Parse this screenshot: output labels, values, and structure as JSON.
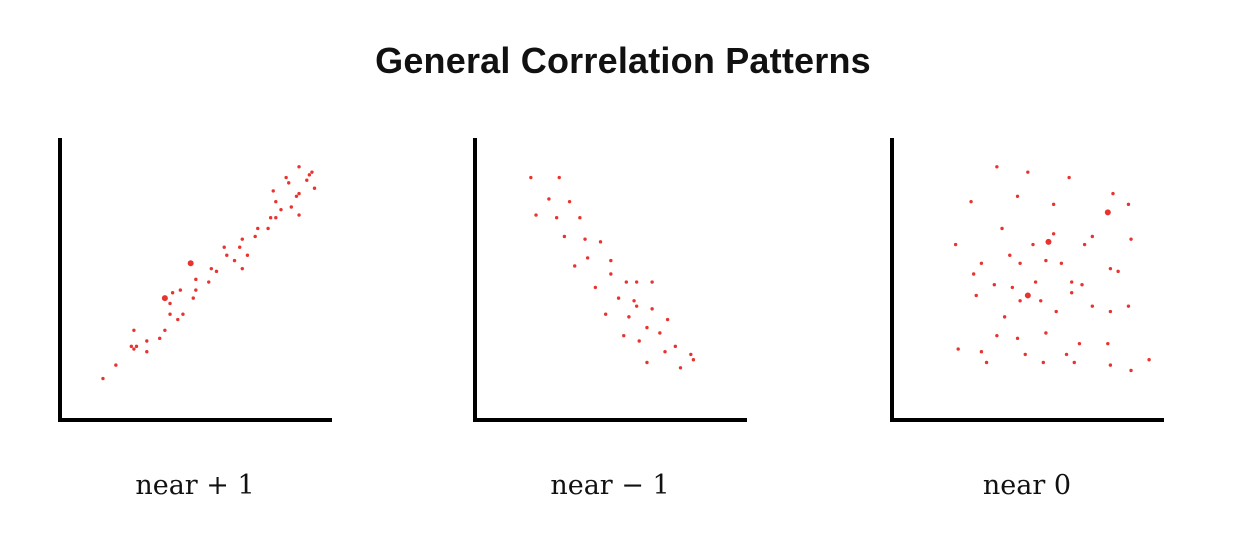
{
  "title": "General Correlation Patterns",
  "colors": {
    "axis": "#000000",
    "point": "#e8332f",
    "text": "#111111"
  },
  "chart_data": [
    {
      "type": "scatter",
      "caption": "near + 1",
      "xlim": [
        0,
        100
      ],
      "ylim": [
        0,
        100
      ],
      "points": [
        [
          12,
          11
        ],
        [
          17,
          16
        ],
        [
          24,
          22
        ],
        [
          23,
          23
        ],
        [
          25,
          23
        ],
        [
          29,
          21
        ],
        [
          29,
          25
        ],
        [
          24,
          29
        ],
        [
          34,
          26
        ],
        [
          36,
          29
        ],
        [
          41,
          33
        ],
        [
          38,
          35
        ],
        [
          43,
          35
        ],
        [
          38,
          39
        ],
        [
          39,
          43
        ],
        [
          47,
          41
        ],
        [
          42,
          44
        ],
        [
          48,
          44
        ],
        [
          53,
          47
        ],
        [
          48,
          48
        ],
        [
          54,
          52
        ],
        [
          56,
          51
        ],
        [
          60,
          57
        ],
        [
          63,
          55
        ],
        [
          66,
          52
        ],
        [
          68,
          57
        ],
        [
          59,
          60
        ],
        [
          65,
          60
        ],
        [
          66,
          63
        ],
        [
          71,
          64
        ],
        [
          72,
          67
        ],
        [
          76,
          67
        ],
        [
          77,
          71
        ],
        [
          79,
          71
        ],
        [
          81,
          74
        ],
        [
          79,
          77
        ],
        [
          85,
          75
        ],
        [
          87,
          79
        ],
        [
          88,
          72
        ],
        [
          78,
          81
        ],
        [
          84,
          84
        ],
        [
          88,
          80
        ],
        [
          91,
          85
        ],
        [
          93,
          88
        ],
        [
          88,
          90
        ],
        [
          83,
          86
        ],
        [
          92,
          87
        ],
        [
          94,
          82
        ]
      ],
      "large_points": [
        [
          36,
          41
        ],
        [
          46,
          54
        ]
      ]
    },
    {
      "type": "scatter",
      "caption": "near − 1",
      "xlim": [
        0,
        100
      ],
      "ylim": [
        0,
        100
      ],
      "points": [
        [
          17,
          86
        ],
        [
          28,
          86
        ],
        [
          24,
          78
        ],
        [
          32,
          77
        ],
        [
          19,
          72
        ],
        [
          27,
          71
        ],
        [
          36,
          71
        ],
        [
          30,
          64
        ],
        [
          38,
          63
        ],
        [
          44,
          62
        ],
        [
          39,
          56
        ],
        [
          48,
          55
        ],
        [
          34,
          53
        ],
        [
          48,
          50
        ],
        [
          54,
          47
        ],
        [
          42,
          45
        ],
        [
          58,
          47
        ],
        [
          64,
          47
        ],
        [
          51,
          41
        ],
        [
          57,
          40
        ],
        [
          58,
          38
        ],
        [
          64,
          37
        ],
        [
          46,
          35
        ],
        [
          55,
          34
        ],
        [
          70,
          33
        ],
        [
          62,
          30
        ],
        [
          67,
          28
        ],
        [
          53,
          27
        ],
        [
          59,
          25
        ],
        [
          73,
          23
        ],
        [
          69,
          21
        ],
        [
          79,
          20
        ],
        [
          62,
          17
        ],
        [
          75,
          15
        ],
        [
          80,
          18
        ]
      ],
      "large_points": []
    },
    {
      "type": "scatter",
      "caption": "near 0",
      "xlim": [
        0,
        100
      ],
      "ylim": [
        0,
        100
      ],
      "points": [
        [
          36,
          90
        ],
        [
          48,
          88
        ],
        [
          64,
          86
        ],
        [
          26,
          77
        ],
        [
          44,
          79
        ],
        [
          58,
          76
        ],
        [
          81,
          80
        ],
        [
          87,
          76
        ],
        [
          38,
          67
        ],
        [
          58,
          65
        ],
        [
          73,
          64
        ],
        [
          88,
          63
        ],
        [
          20,
          61
        ],
        [
          50,
          61
        ],
        [
          70,
          61
        ],
        [
          41,
          57
        ],
        [
          30,
          54
        ],
        [
          45,
          54
        ],
        [
          55,
          55
        ],
        [
          61,
          54
        ],
        [
          80,
          52
        ],
        [
          27,
          50
        ],
        [
          51,
          47
        ],
        [
          65,
          47
        ],
        [
          35,
          46
        ],
        [
          42,
          45
        ],
        [
          69,
          46
        ],
        [
          83,
          51
        ],
        [
          28,
          42
        ],
        [
          45,
          40
        ],
        [
          53,
          40
        ],
        [
          65,
          43
        ],
        [
          73,
          38
        ],
        [
          80,
          36
        ],
        [
          87,
          38
        ],
        [
          39,
          34
        ],
        [
          59,
          36
        ],
        [
          36,
          27
        ],
        [
          55,
          28
        ],
        [
          44,
          26
        ],
        [
          68,
          24
        ],
        [
          79,
          24
        ],
        [
          21,
          22
        ],
        [
          30,
          21
        ],
        [
          47,
          20
        ],
        [
          63,
          20
        ],
        [
          32,
          17
        ],
        [
          54,
          17
        ],
        [
          66,
          17
        ],
        [
          80,
          16
        ],
        [
          88,
          14
        ],
        [
          95,
          18
        ]
      ],
      "large_points": [
        [
          56,
          62
        ],
        [
          48,
          42
        ],
        [
          79,
          73
        ]
      ]
    }
  ]
}
